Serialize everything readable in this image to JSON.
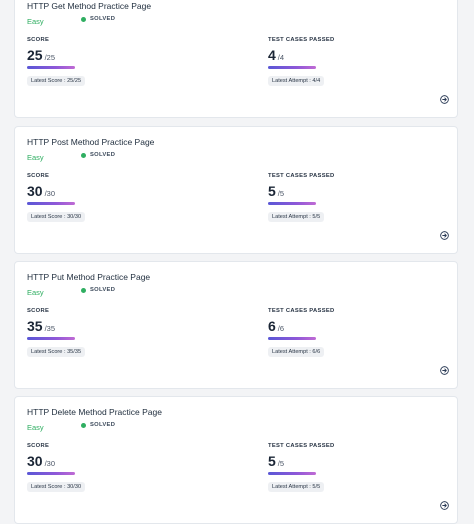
{
  "cards": [
    {
      "title": "HTTP Get Method Practice Page",
      "difficulty": "Easy",
      "status": "SOLVED",
      "score_label": "SCORE",
      "score": "25",
      "score_total": "/25",
      "score_pill": "Latest Score : 25/25",
      "tests_label": "TEST CASES PASSED",
      "tests": "4",
      "tests_total": "/4",
      "tests_pill": "Latest Attempt : 4/4"
    },
    {
      "title": "HTTP Post Method Practice Page",
      "difficulty": "Easy",
      "status": "SOLVED",
      "score_label": "SCORE",
      "score": "30",
      "score_total": "/30",
      "score_pill": "Latest Score : 30/30",
      "tests_label": "TEST CASES PASSED",
      "tests": "5",
      "tests_total": "/5",
      "tests_pill": "Latest Attempt : 5/5"
    },
    {
      "title": "HTTP Put Method Practice Page",
      "difficulty": "Easy",
      "status": "SOLVED",
      "score_label": "SCORE",
      "score": "35",
      "score_total": "/35",
      "score_pill": "Latest Score : 35/35",
      "tests_label": "TEST CASES PASSED",
      "tests": "6",
      "tests_total": "/6",
      "tests_pill": "Latest Attempt : 6/6"
    },
    {
      "title": "HTTP Delete Method Practice Page",
      "difficulty": "Easy",
      "status": "SOLVED",
      "score_label": "SCORE",
      "score": "30",
      "score_total": "/30",
      "score_pill": "Latest Score : 30/30",
      "tests_label": "TEST CASES PASSED",
      "tests": "5",
      "tests_total": "/5",
      "tests_pill": "Latest Attempt : 5/5"
    }
  ],
  "icons": {
    "arrow": "arrow-right-circle-icon"
  },
  "colors": {
    "easy": "#2fae61",
    "bar_start": "#5a57d6",
    "bar_end": "#c06ad4"
  }
}
